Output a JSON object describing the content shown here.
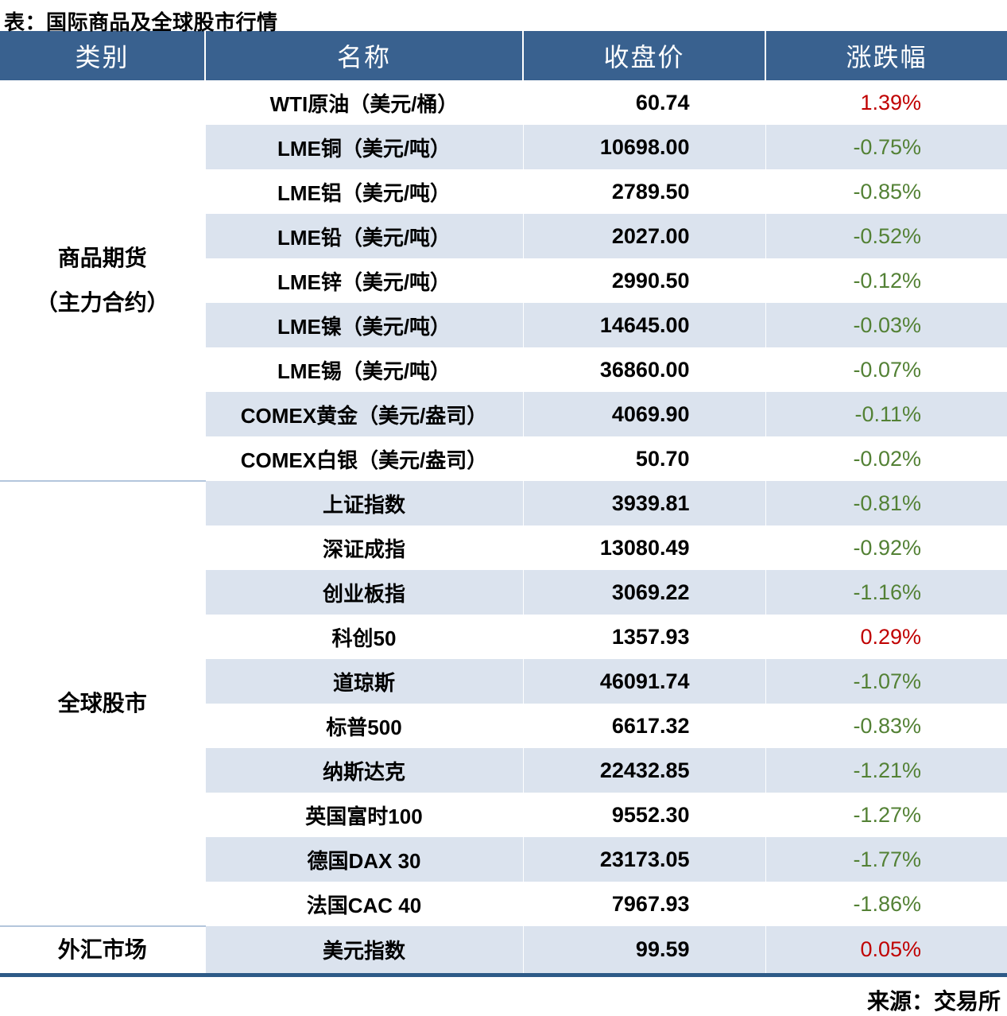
{
  "title": "表：国际商品及全球股市行情",
  "source": "来源：交易所",
  "colors": {
    "header_bg": "#39618f",
    "header_text": "#ffffff",
    "stripe_row_bg": "#dbe3ee",
    "plain_row_bg": "#ffffff",
    "up_text": "#c00000",
    "down_text": "#538135",
    "bottom_rule": "#2d5a87",
    "group_separator": "#b3c6dc"
  },
  "chart_data": {
    "type": "table",
    "title": "表：国际商品及全球股市行情",
    "columns": [
      "类别",
      "名称",
      "收盘价",
      "涨跌幅"
    ],
    "source": "来源：交易所",
    "groups": [
      {
        "category": "商品期货（主力合约）",
        "category_lines": [
          "商品期货",
          "（主力合约）"
        ],
        "rows": [
          {
            "name": "WTI原油（美元/桶）",
            "close": 60.74,
            "change_pct": 1.39
          },
          {
            "name": "LME铜（美元/吨）",
            "close": 10698.0,
            "change_pct": -0.75
          },
          {
            "name": "LME铝（美元/吨）",
            "close": 2789.5,
            "change_pct": -0.85
          },
          {
            "name": "LME铅（美元/吨）",
            "close": 2027.0,
            "change_pct": -0.52
          },
          {
            "name": "LME锌（美元/吨）",
            "close": 2990.5,
            "change_pct": -0.12
          },
          {
            "name": "LME镍（美元/吨）",
            "close": 14645.0,
            "change_pct": -0.03
          },
          {
            "name": "LME锡（美元/吨）",
            "close": 36860.0,
            "change_pct": -0.07
          },
          {
            "name": "COMEX黄金（美元/盎司）",
            "close": 4069.9,
            "change_pct": -0.11
          },
          {
            "name": "COMEX白银（美元/盎司）",
            "close": 50.7,
            "change_pct": -0.02
          }
        ]
      },
      {
        "category": "全球股市",
        "category_lines": [
          "全球股市"
        ],
        "rows": [
          {
            "name": "上证指数",
            "close": 3939.81,
            "change_pct": -0.81
          },
          {
            "name": "深证成指",
            "close": 13080.49,
            "change_pct": -0.92
          },
          {
            "name": "创业板指",
            "close": 3069.22,
            "change_pct": -1.16
          },
          {
            "name": "科创50",
            "close": 1357.93,
            "change_pct": 0.29
          },
          {
            "name": "道琼斯",
            "close": 46091.74,
            "change_pct": -1.07
          },
          {
            "name": "标普500",
            "close": 6617.32,
            "change_pct": -0.83
          },
          {
            "name": "纳斯达克",
            "close": 22432.85,
            "change_pct": -1.21
          },
          {
            "name": "英国富时100",
            "close": 9552.3,
            "change_pct": -1.27
          },
          {
            "name": "德国DAX 30",
            "close": 23173.05,
            "change_pct": -1.77
          },
          {
            "name": "法国CAC 40",
            "close": 7967.93,
            "change_pct": -1.86
          }
        ]
      },
      {
        "category": "外汇市场",
        "category_lines": [
          "外汇市场"
        ],
        "rows": [
          {
            "name": "美元指数",
            "close": 99.59,
            "change_pct": 0.05
          }
        ]
      }
    ]
  }
}
